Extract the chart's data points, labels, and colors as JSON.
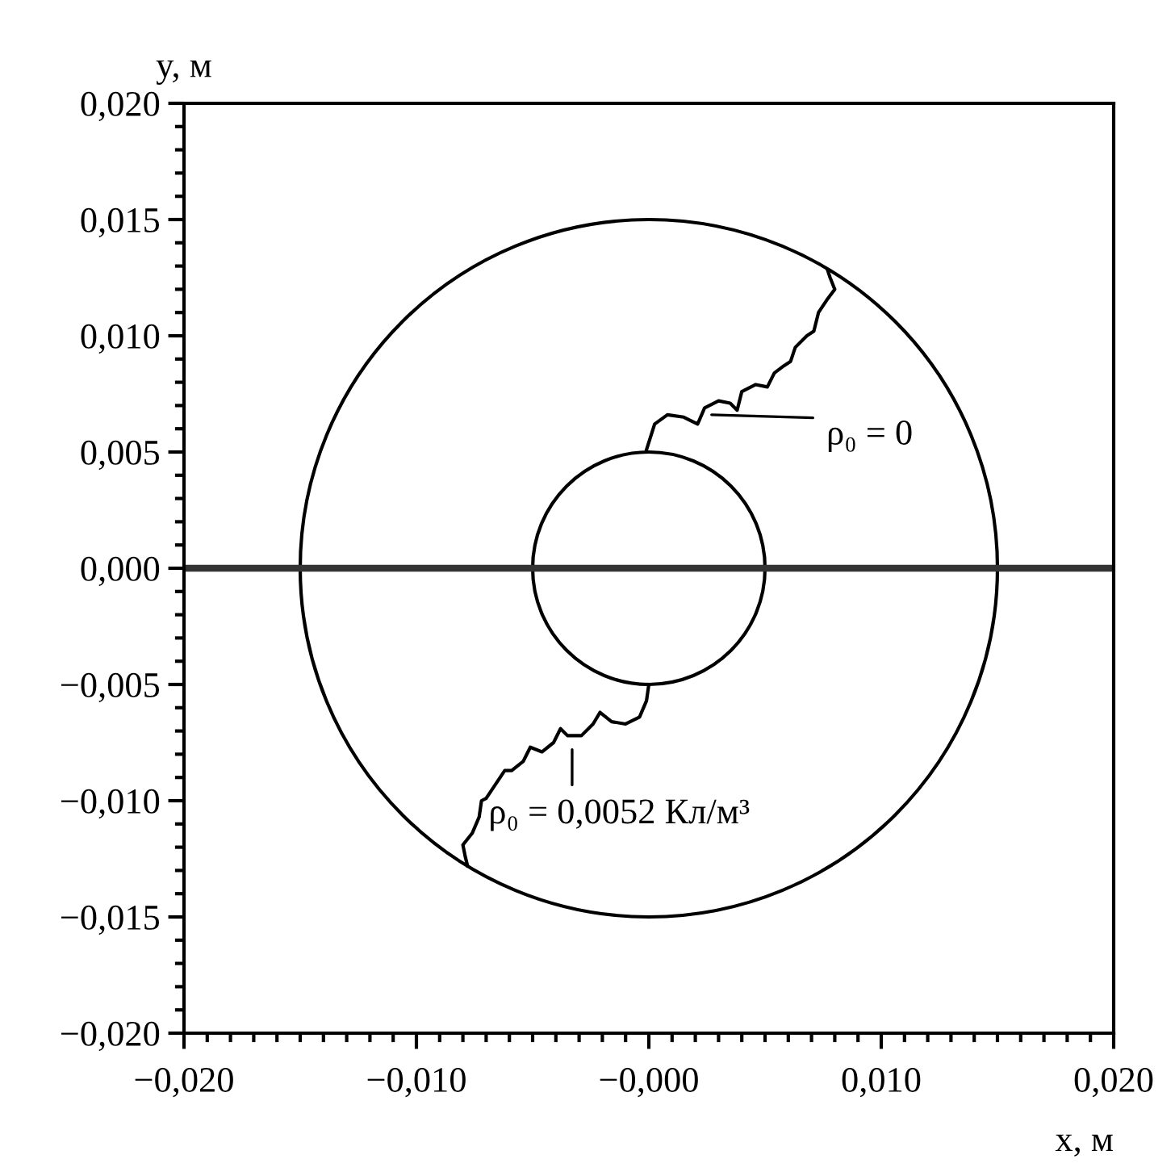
{
  "chart_data": {
    "type": "line",
    "xlabel": "x, м",
    "ylabel": "y, м",
    "xlim": [
      -0.02,
      0.02
    ],
    "ylim": [
      -0.02,
      0.02
    ],
    "xticks": [
      {
        "value": -0.02,
        "label": "−0,020"
      },
      {
        "value": -0.01,
        "label": "−0,010"
      },
      {
        "value": 0,
        "label": "−0,000"
      },
      {
        "value": 0.01,
        "label": "0,010"
      },
      {
        "value": 0.02,
        "label": "0,020"
      }
    ],
    "yticks": [
      {
        "value": 0.02,
        "label": "0,020"
      },
      {
        "value": 0.015,
        "label": "0,015"
      },
      {
        "value": 0.01,
        "label": "0,010"
      },
      {
        "value": 0.005,
        "label": "0,005"
      },
      {
        "value": 0,
        "label": "0,000"
      },
      {
        "value": -0.005,
        "label": "−0,005"
      },
      {
        "value": -0.01,
        "label": "−0,010"
      },
      {
        "value": -0.015,
        "label": "−0,015"
      },
      {
        "value": -0.02,
        "label": "−0,020"
      }
    ],
    "grid": false,
    "legend": false,
    "marker": "none",
    "line_style": "solid",
    "series": [
      {
        "color": "#000000",
        "x": [
          -0.0001,
          0.00025,
          0.0008,
          0.0015,
          0.0021,
          0.0024,
          0.003,
          0.0035,
          0.0038,
          0.004,
          0.0046,
          0.0051,
          0.0054,
          0.0058,
          0.0061,
          0.0063,
          0.0068,
          0.0071,
          0.0073,
          0.0077,
          0.008,
          0.0078,
          0.0077
        ],
        "values": [
          0.0051,
          0.0062,
          0.0066,
          0.0065,
          0.0062,
          0.0069,
          0.0072,
          0.0071,
          0.0068,
          0.0076,
          0.0079,
          0.0078,
          0.0084,
          0.0087,
          0.0089,
          0.0095,
          0.01,
          0.0102,
          0.011,
          0.0116,
          0.012,
          0.0125,
          0.0128
        ]
      },
      {
        "color": "#000000",
        "x": [
          0,
          -0.0001,
          -0.0004,
          -0.001,
          -0.0016,
          -0.0021,
          -0.0024,
          -0.0029,
          -0.0035,
          -0.0038,
          -0.0041,
          -0.0046,
          -0.0051,
          -0.0054,
          -0.0059,
          -0.0062,
          -0.0066,
          -0.007,
          -0.0072,
          -0.0073,
          -0.0076,
          -0.008,
          -0.0079,
          -0.0078
        ],
        "values": [
          -0.005,
          -0.0057,
          -0.0064,
          -0.0067,
          -0.0066,
          -0.0062,
          -0.0067,
          -0.0072,
          -0.0072,
          -0.0069,
          -0.0075,
          -0.0079,
          -0.0077,
          -0.0083,
          -0.0087,
          -0.0087,
          -0.0093,
          -0.0099,
          -0.01,
          -0.0107,
          -0.0114,
          -0.0119,
          -0.0124,
          -0.0128
        ]
      }
    ],
    "ref_lines": [
      {
        "axis": "y",
        "value": 0,
        "color": "#333333"
      }
    ],
    "annotations": [
      "ρ₀ = 0",
      "ρ₀ = 0,0052 Кл/м³"
    ]
  }
}
